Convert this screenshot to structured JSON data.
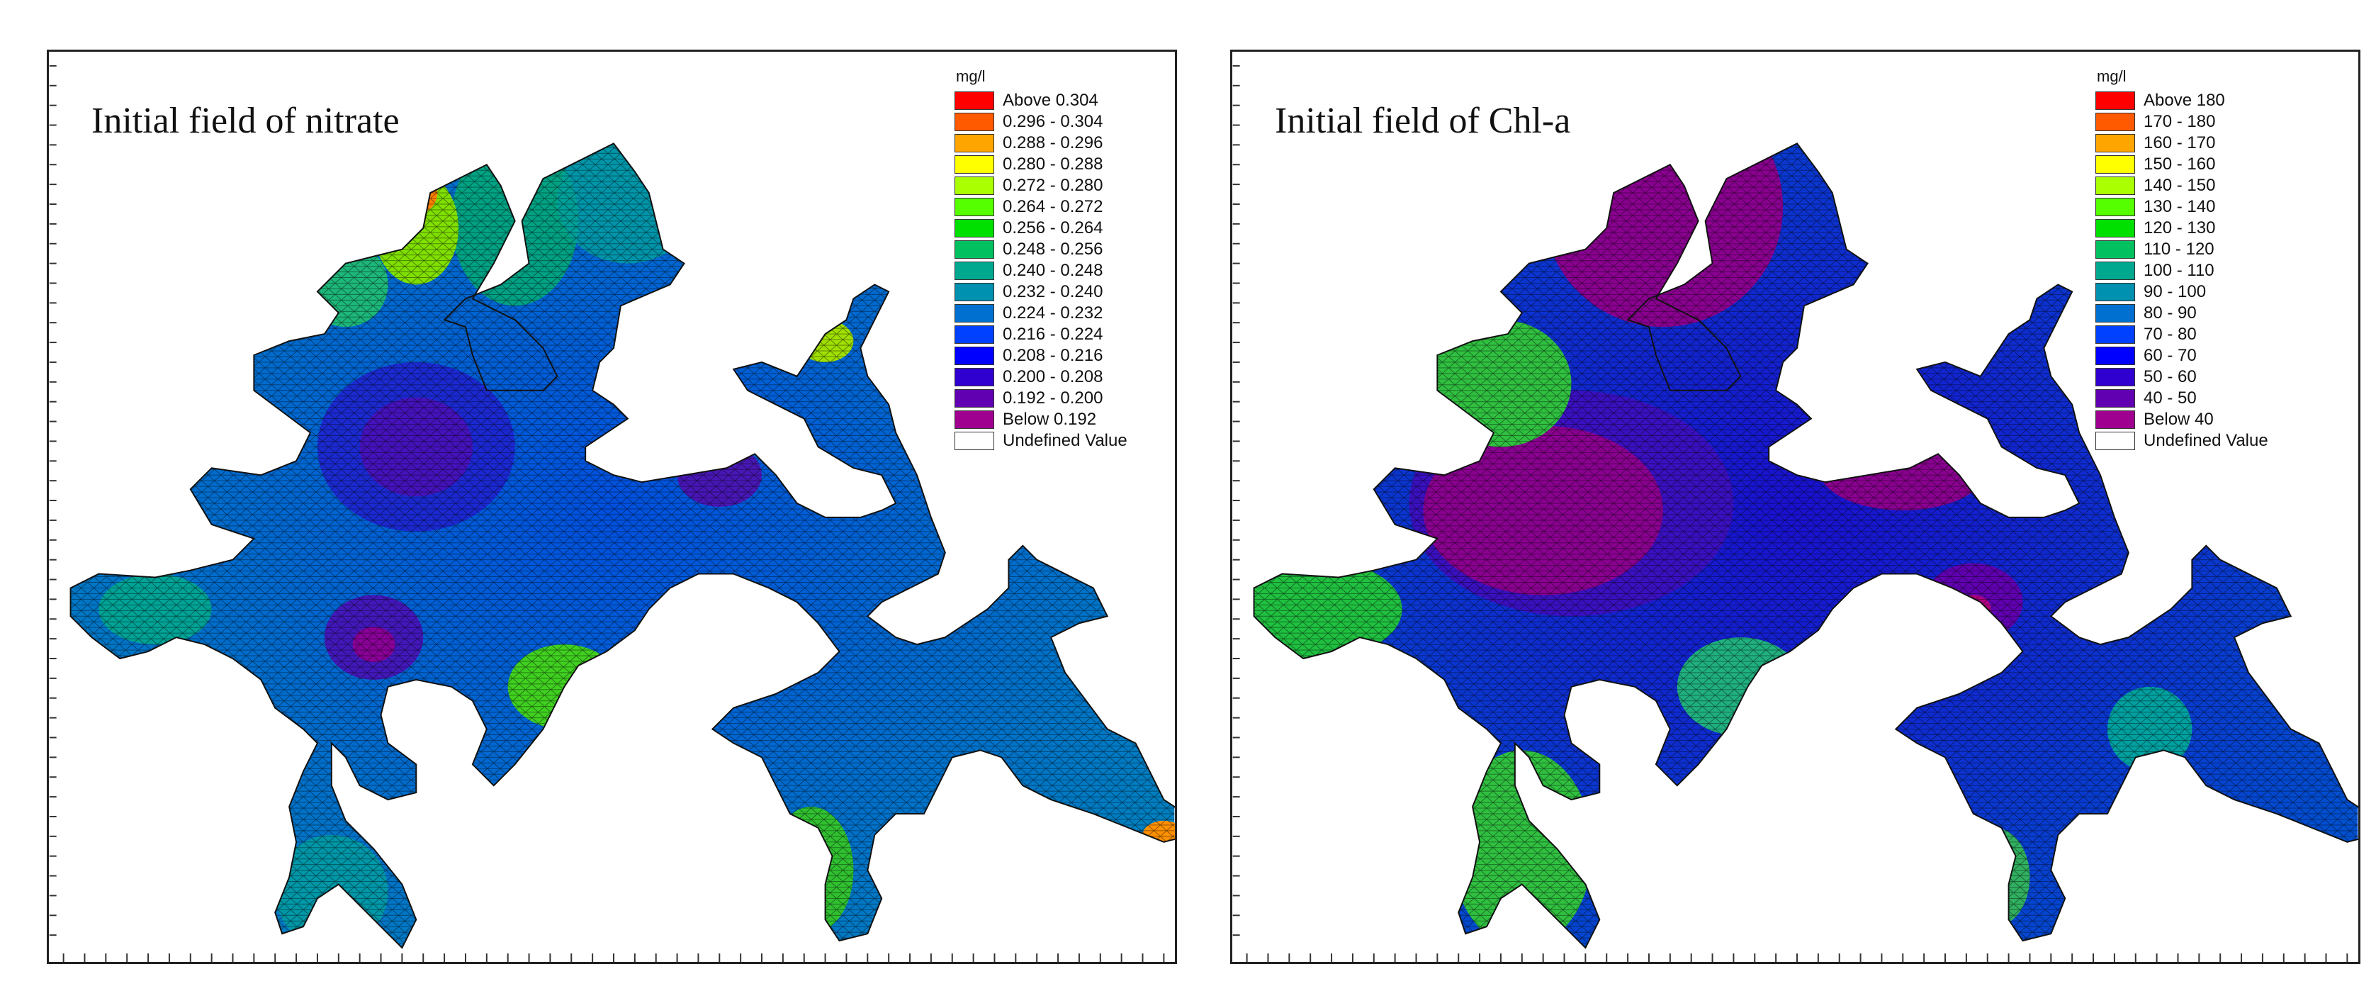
{
  "panels": [
    {
      "title": "Initial  field of nitrate",
      "legend": {
        "unit": "mg/l",
        "items": [
          {
            "label": "Above  0.304",
            "color": "#ff0000"
          },
          {
            "label": "0.296 - 0.304",
            "color": "#ff5a00"
          },
          {
            "label": "0.288 - 0.296",
            "color": "#ffa500"
          },
          {
            "label": "0.280 - 0.288",
            "color": "#ffff00"
          },
          {
            "label": "0.272 - 0.280",
            "color": "#aaff00"
          },
          {
            "label": "0.264 - 0.272",
            "color": "#55ff00"
          },
          {
            "label": "0.256 - 0.264",
            "color": "#00e000"
          },
          {
            "label": "0.248 - 0.256",
            "color": "#00c060"
          },
          {
            "label": "0.240 - 0.248",
            "color": "#00a890"
          },
          {
            "label": "0.232 - 0.240",
            "color": "#0090b0"
          },
          {
            "label": "0.224 - 0.232",
            "color": "#0070d0"
          },
          {
            "label": "0.216 - 0.224",
            "color": "#0040ff"
          },
          {
            "label": "0.208 - 0.216",
            "color": "#0000ff"
          },
          {
            "label": "0.200 - 0.208",
            "color": "#3000d0"
          },
          {
            "label": "0.192 - 0.200",
            "color": "#6000b0"
          },
          {
            "label": "Below  0.192",
            "color": "#a00090"
          },
          {
            "label": "Undefined Value",
            "color": "#ffffff"
          }
        ]
      }
    },
    {
      "title": "Initial  field of Chl-a",
      "legend": {
        "unit": "mg/l",
        "items": [
          {
            "label": "Above 180",
            "color": "#ff0000"
          },
          {
            "label": "170 - 180",
            "color": "#ff5a00"
          },
          {
            "label": "160 - 170",
            "color": "#ffa500"
          },
          {
            "label": "150 - 160",
            "color": "#ffff00"
          },
          {
            "label": "140 - 150",
            "color": "#aaff00"
          },
          {
            "label": "130 - 140",
            "color": "#55ff00"
          },
          {
            "label": "120 - 130",
            "color": "#00e000"
          },
          {
            "label": "110 - 120",
            "color": "#00c060"
          },
          {
            "label": "100 - 110",
            "color": "#00a890"
          },
          {
            "label": "90 - 100",
            "color": "#0090b0"
          },
          {
            "label": "80 -  90",
            "color": "#0070d0"
          },
          {
            "label": "70 -  80",
            "color": "#0040ff"
          },
          {
            "label": "60 -  70",
            "color": "#0000ff"
          },
          {
            "label": "50 -  60",
            "color": "#3000d0"
          },
          {
            "label": "40 -  50",
            "color": "#6000b0"
          },
          {
            "label": "Below  40",
            "color": "#a00090"
          },
          {
            "label": "Undefined Value",
            "color": "#ffffff"
          }
        ]
      }
    }
  ]
}
